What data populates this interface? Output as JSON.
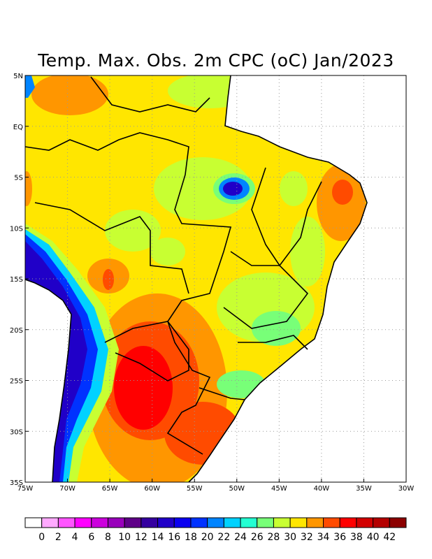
{
  "title": "Temp. Max. Obs. 2m CPC (oC) Jan/2023",
  "map": {
    "lon_range": [
      -75,
      -30
    ],
    "lat_range": [
      -35,
      5
    ],
    "x_ticks": [
      "75W",
      "70W",
      "65W",
      "60W",
      "55W",
      "50W",
      "45W",
      "40W",
      "35W",
      "30W"
    ],
    "y_ticks": [
      "5N",
      "EQ",
      "5S",
      "10S",
      "15S",
      "20S",
      "25S",
      "30S",
      "35S"
    ],
    "variable": "Maximum 2m temperature (oC)"
  },
  "colorbar": {
    "labels": [
      "0",
      "2",
      "4",
      "6",
      "8",
      "10",
      "12",
      "14",
      "16",
      "18",
      "20",
      "22",
      "24",
      "26",
      "28",
      "30",
      "32",
      "34",
      "36",
      "38",
      "40",
      "42"
    ],
    "colors": [
      "#ffffff",
      "#ffaaff",
      "#ff55ff",
      "#ff00ff",
      "#cc00dd",
      "#9900bb",
      "#5f0088",
      "#3500a0",
      "#2000c8",
      "#0a00f0",
      "#0032ff",
      "#0084ff",
      "#00d2ff",
      "#23ffd2",
      "#78ff78",
      "#c8ff32",
      "#ffe600",
      "#ff9600",
      "#ff4b00",
      "#ff0000",
      "#d20000",
      "#b40000",
      "#8c0000"
    ]
  }
}
